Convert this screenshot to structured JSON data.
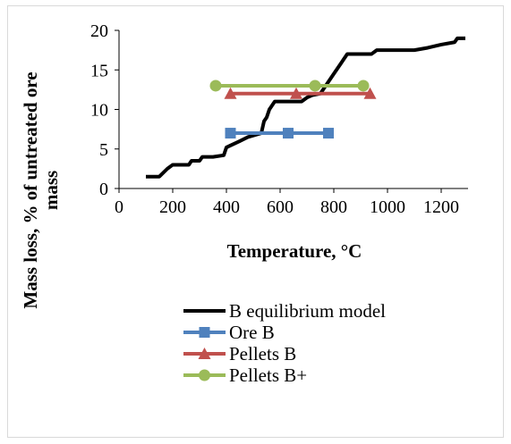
{
  "chart_data": {
    "type": "line",
    "xlabel": "Temperature, °C",
    "ylabel_lines": [
      "Mass loss, % of untreated ore",
      "mass"
    ],
    "xlim": [
      0,
      1300
    ],
    "ylim": [
      0,
      20
    ],
    "x_ticks": [
      0,
      200,
      400,
      600,
      800,
      1000,
      1200
    ],
    "y_ticks": [
      0,
      5,
      10,
      15,
      20
    ],
    "grid": false,
    "legend_position": "bottom",
    "series": [
      {
        "name": "B equilibrium model",
        "color": "#000000",
        "marker": "none",
        "x": [
          100,
          150,
          180,
          200,
          260,
          270,
          300,
          310,
          350,
          390,
          400,
          450,
          480,
          530,
          540,
          550,
          560,
          580,
          600,
          680,
          700,
          720,
          750,
          800,
          850,
          870,
          900,
          940,
          960,
          1000,
          1100,
          1150,
          1200,
          1250,
          1260,
          1290
        ],
        "y": [
          1.5,
          1.5,
          2.5,
          3.0,
          3.0,
          3.5,
          3.5,
          4.0,
          4.0,
          4.2,
          5.2,
          6.0,
          6.5,
          7.0,
          8.5,
          9.0,
          10.0,
          11.0,
          11.0,
          11.0,
          11.5,
          11.8,
          12.0,
          14.5,
          17.0,
          17.0,
          17.0,
          17.0,
          17.5,
          17.5,
          17.5,
          17.8,
          18.2,
          18.5,
          19.0,
          19.0
        ]
      },
      {
        "name": "Ore B",
        "color": "#4f81bd",
        "marker": "square",
        "x": [
          415,
          630,
          780
        ],
        "y": [
          7,
          7,
          7
        ]
      },
      {
        "name": "Pellets B",
        "color": "#c0504d",
        "marker": "triangle",
        "x": [
          415,
          660,
          935
        ],
        "y": [
          12,
          12,
          12
        ]
      },
      {
        "name": "Pellets B+",
        "color": "#9bbb59",
        "marker": "circle",
        "x": [
          360,
          730,
          910
        ],
        "y": [
          13,
          13,
          13
        ]
      }
    ]
  }
}
